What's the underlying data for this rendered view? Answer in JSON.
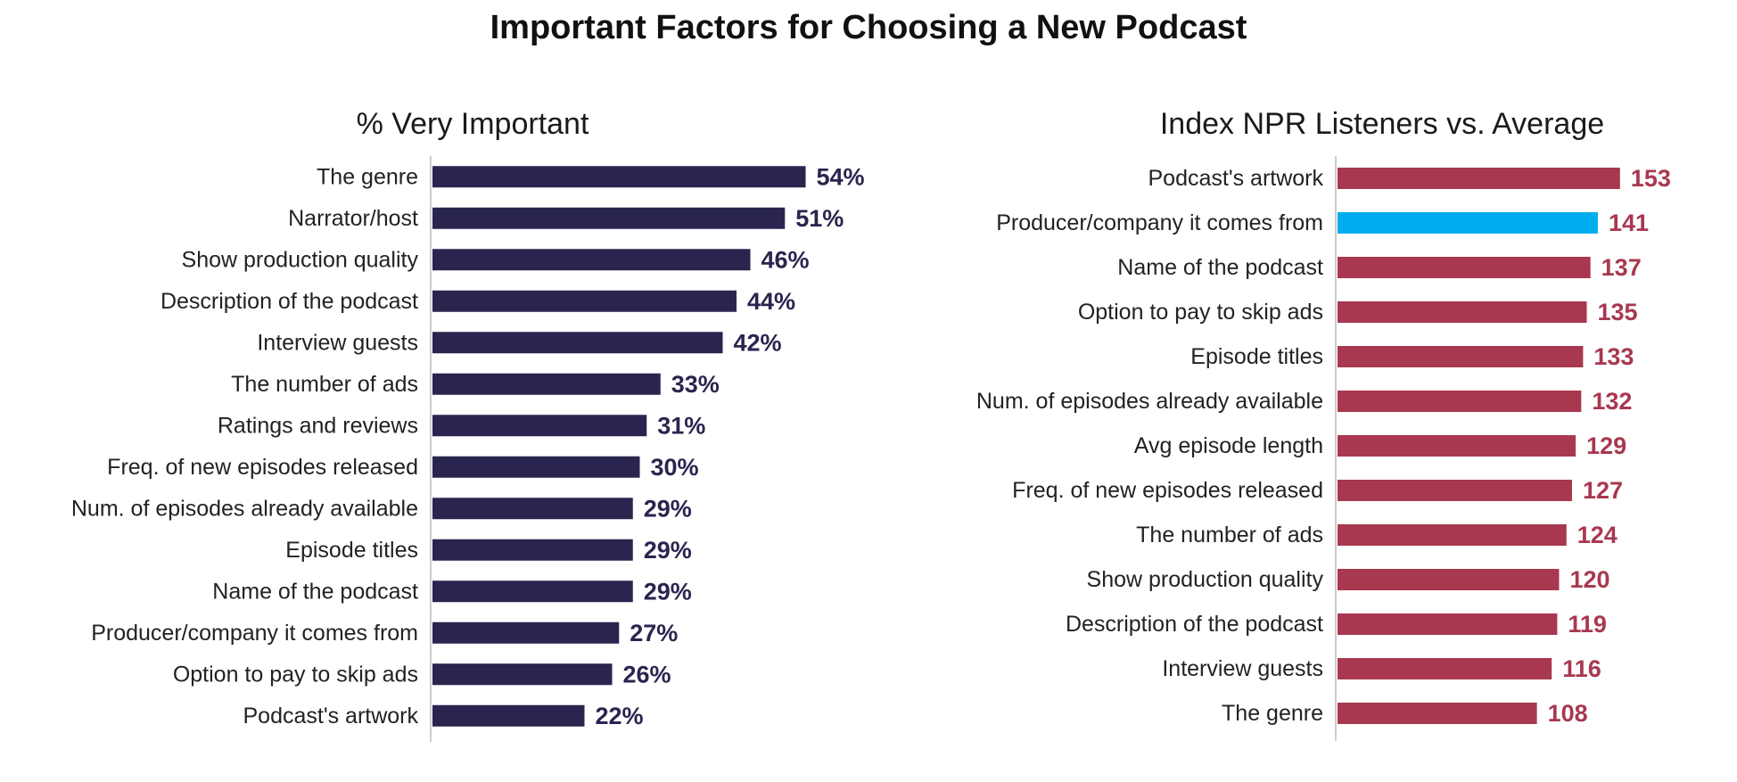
{
  "title": "Important Factors for Choosing a New Podcast",
  "colors": {
    "left_bar": "#29254f",
    "left_value": "#29254f",
    "right_bar": "#a8384f",
    "right_value": "#a8384f",
    "right_highlight": "#00aeef"
  },
  "chart_data": [
    {
      "type": "bar",
      "orientation": "horizontal",
      "title": "% Very Important",
      "categories": [
        "The genre",
        "Narrator/host",
        "Show production quality",
        "Description of the podcast",
        "Interview guests",
        "The number of ads",
        "Ratings and reviews",
        "Freq. of new episodes released",
        "Num. of episodes already available",
        "Episode titles",
        "Name of the podcast",
        "Producer/company it comes from",
        "Option to pay to skip ads",
        "Podcast's artwork"
      ],
      "values": [
        54,
        51,
        46,
        44,
        42,
        33,
        31,
        30,
        29,
        29,
        29,
        27,
        26,
        22
      ],
      "value_labels": [
        "54%",
        "51%",
        "46%",
        "44%",
        "42%",
        "33%",
        "31%",
        "30%",
        "29%",
        "29%",
        "29%",
        "27%",
        "26%",
        "22%"
      ],
      "xlim": [
        0,
        60
      ],
      "grid": false
    },
    {
      "type": "bar",
      "orientation": "horizontal",
      "title": "Index NPR Listeners vs. Average",
      "categories": [
        "Podcast's artwork",
        "Producer/company it comes from",
        "Name of the podcast",
        "Option to pay to skip ads",
        "Episode titles",
        "Num. of episodes already available",
        "Avg episode length",
        "Freq. of new episodes released",
        "The number of ads",
        "Show production quality",
        "Description of the podcast",
        "Interview guests",
        "The genre"
      ],
      "values": [
        153,
        141,
        137,
        135,
        133,
        132,
        129,
        127,
        124,
        120,
        119,
        116,
        108
      ],
      "value_labels": [
        "153",
        "141",
        "137",
        "135",
        "133",
        "132",
        "129",
        "127",
        "124",
        "120",
        "119",
        "116",
        "108"
      ],
      "highlight_index": 1,
      "xlim": [
        0,
        170
      ],
      "grid": false
    }
  ]
}
